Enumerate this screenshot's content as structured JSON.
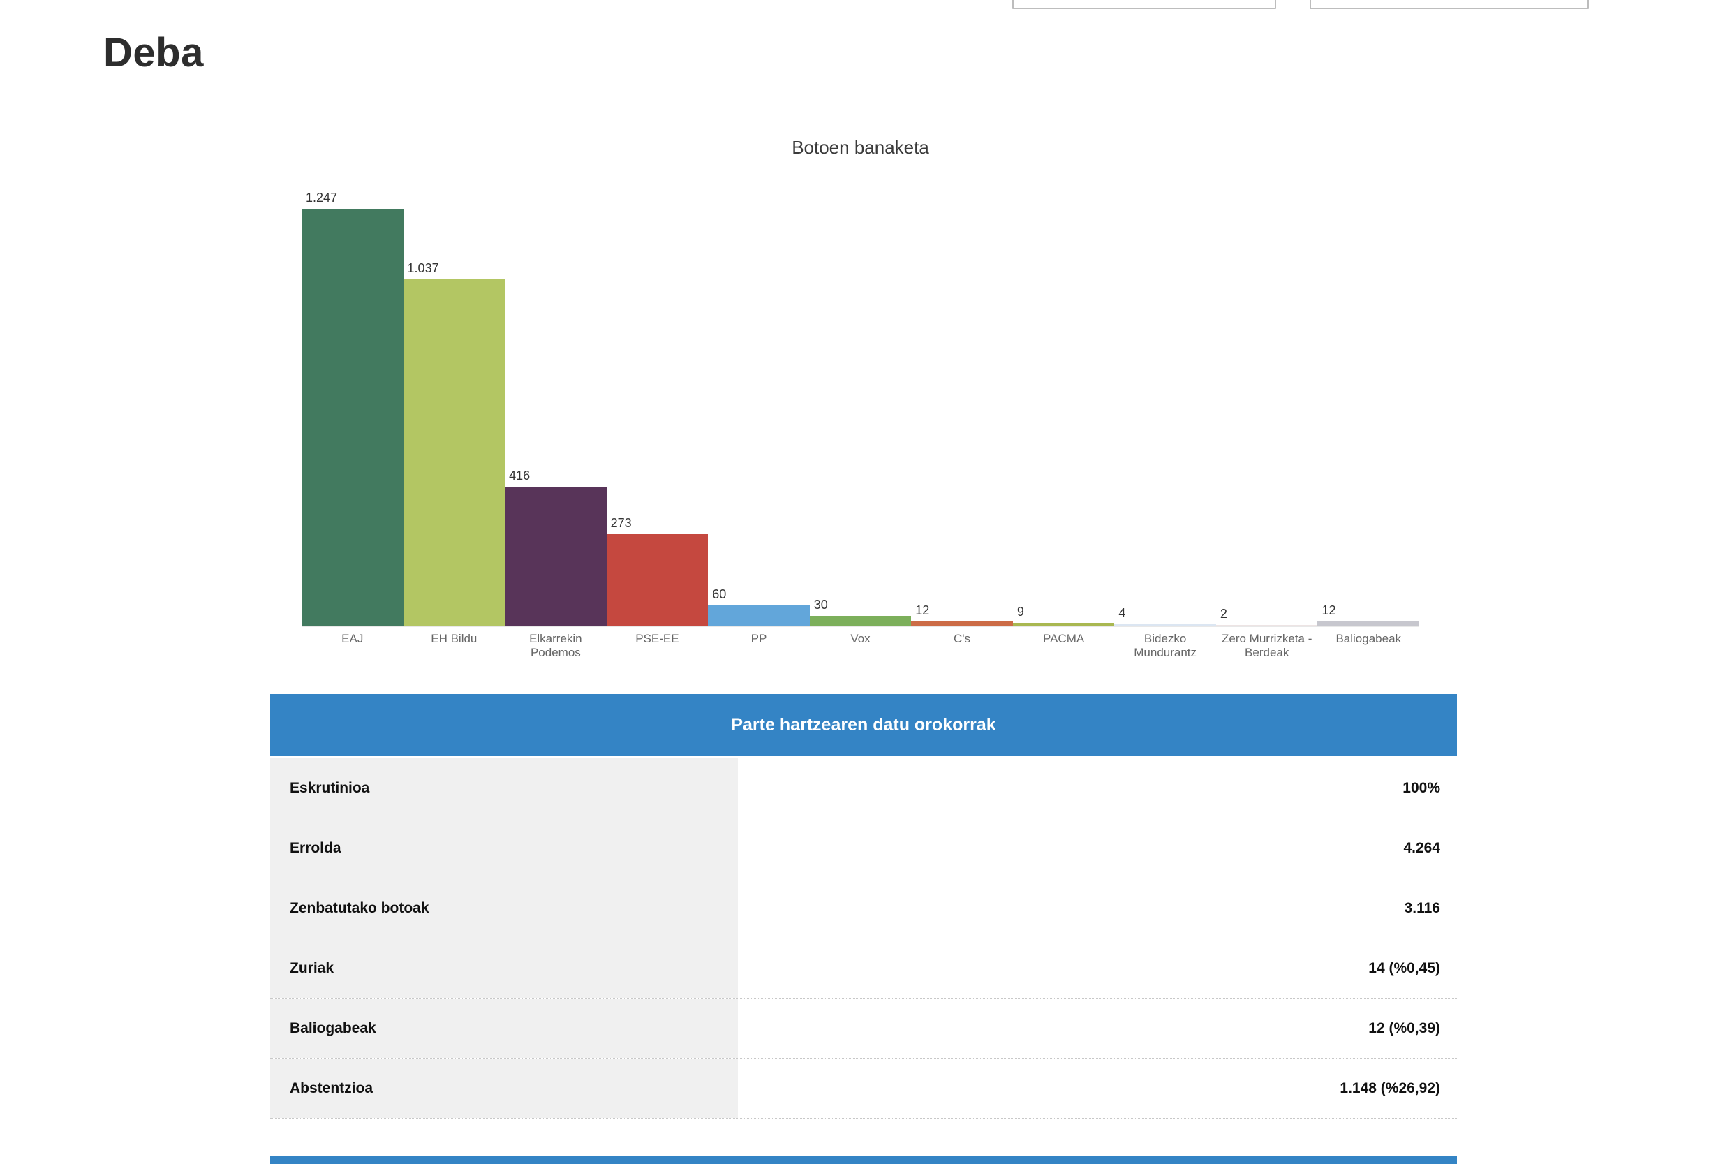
{
  "page": {
    "title": "Deba"
  },
  "chart_data": {
    "type": "bar",
    "title": "Botoen banaketa",
    "categories": [
      "EAJ",
      "EH Bildu",
      "Elkarrekin Podemos",
      "PSE-EE",
      "PP",
      "Vox",
      "C's",
      "PACMA",
      "Bidezko Mundurantz",
      "Zero Murrizketa - Berdeak",
      "Baliogabeak"
    ],
    "values": [
      1247,
      1037,
      416,
      273,
      60,
      30,
      12,
      9,
      4,
      2,
      12
    ],
    "value_labels": [
      "1.247",
      "1.037",
      "416",
      "273",
      "60",
      "30",
      "12",
      "9",
      "4",
      "2",
      "12"
    ],
    "colors": [
      "#427a5f",
      "#b3c663",
      "#583459",
      "#c5483f",
      "#62a6da",
      "#7caf5b",
      "#cc6c46",
      "#a9b851",
      "#dce6f2",
      "#ede4e4",
      "#c7c7ce"
    ],
    "xlabel": "",
    "ylabel": "",
    "ylim": [
      0,
      1250
    ],
    "grid": false,
    "legend": "none"
  },
  "table": {
    "header": "Parte hartzearen datu orokorrak",
    "rows": [
      {
        "label": "Eskrutinioa",
        "value": "100%"
      },
      {
        "label": "Errolda",
        "value": "4.264"
      },
      {
        "label": "Zenbatutako botoak",
        "value": "3.116"
      },
      {
        "label": "Zuriak",
        "value": "14 (%0,45)"
      },
      {
        "label": "Baliogabeak",
        "value": "12 (%0,39)"
      },
      {
        "label": "Abstentzioa",
        "value": "1.148 (%26,92)"
      }
    ]
  },
  "colors": {
    "accent_blue": "#3484c5",
    "label_cell_gray": "#f0f0f0",
    "axis_line": "#e8e8e8",
    "axis_label_gray": "#666666"
  }
}
